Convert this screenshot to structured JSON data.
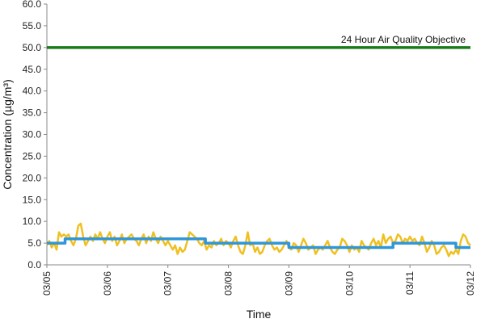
{
  "chart_data": {
    "type": "line",
    "xlabel": "Time",
    "ylabel": "Concentration (µg/m³)",
    "ylim": [
      0,
      60
    ],
    "y_ticks": [
      "0.0",
      "5.0",
      "10.0",
      "15.0",
      "20.0",
      "25.0",
      "30.0",
      "35.0",
      "40.0",
      "45.0",
      "50.0",
      "55.0",
      "60.0"
    ],
    "x_ticks": [
      "03/05",
      "03/06",
      "03/07",
      "03/08",
      "03/09",
      "03/10",
      "03/11",
      "03/12"
    ],
    "grid": false,
    "objective": {
      "label": "24 Hour Air Quality Objective",
      "value": 50,
      "color": "#1a7a1a"
    },
    "series": [
      {
        "color": "#f0c020",
        "x": [
          0,
          0.04,
          0.08,
          0.12,
          0.16,
          0.2,
          0.24,
          0.28,
          0.32,
          0.36,
          0.4,
          0.44,
          0.48,
          0.52,
          0.56,
          0.6,
          0.64,
          0.68,
          0.72,
          0.76,
          0.8,
          0.84,
          0.88,
          0.92,
          0.96,
          1.0,
          1.04,
          1.08,
          1.12,
          1.16,
          1.2,
          1.24,
          1.28,
          1.32,
          1.36,
          1.4,
          1.44,
          1.48,
          1.52,
          1.56,
          1.6,
          1.64,
          1.68,
          1.72,
          1.76,
          1.8,
          1.84,
          1.88,
          1.92,
          1.96,
          2.0,
          2.04,
          2.08,
          2.12,
          2.16,
          2.2,
          2.24,
          2.28,
          2.32,
          2.36,
          2.4,
          2.44,
          2.48,
          2.52,
          2.56,
          2.6,
          2.64,
          2.68,
          2.72,
          2.76,
          2.8,
          2.84,
          2.88,
          2.92,
          2.96,
          3.0,
          3.04,
          3.08,
          3.12,
          3.16,
          3.2,
          3.24,
          3.28,
          3.32,
          3.36,
          3.4,
          3.44,
          3.48,
          3.52,
          3.56,
          3.6,
          3.64,
          3.68,
          3.72,
          3.76,
          3.8,
          3.84,
          3.88,
          3.92,
          3.96,
          4.0,
          4.04,
          4.08,
          4.12,
          4.16,
          4.2,
          4.24,
          4.28,
          4.32,
          4.36,
          4.4,
          4.44,
          4.48,
          4.52,
          4.56,
          4.6,
          4.64,
          4.68,
          4.72,
          4.76,
          4.8,
          4.84,
          4.88,
          4.92,
          4.96,
          5.0,
          5.04,
          5.08,
          5.12,
          5.16,
          5.2,
          5.24,
          5.28,
          5.32,
          5.36,
          5.4,
          5.44,
          5.48,
          5.52,
          5.56,
          5.6,
          5.64,
          5.68,
          5.72,
          5.76,
          5.8,
          5.84,
          5.88,
          5.92,
          5.96,
          6.0,
          6.04,
          6.08,
          6.12,
          6.16,
          6.2,
          6.24,
          6.28,
          6.32,
          6.36,
          6.4,
          6.44,
          6.48,
          6.52,
          6.56,
          6.6,
          6.64,
          6.68,
          6.72,
          6.76,
          6.8,
          6.84,
          6.88,
          6.92,
          6.96,
          7.0
        ],
        "y": [
          4.5,
          5.5,
          4.0,
          5.0,
          3.5,
          7.5,
          6.5,
          7.0,
          6.5,
          7.0,
          5.5,
          4.5,
          6.0,
          9.0,
          9.5,
          6.5,
          4.5,
          5.5,
          6.5,
          5.5,
          7.0,
          6.0,
          7.5,
          6.0,
          5.0,
          6.5,
          7.5,
          5.5,
          6.5,
          4.5,
          5.5,
          7.0,
          5.0,
          6.0,
          6.5,
          7.0,
          6.0,
          5.5,
          4.5,
          6.0,
          7.0,
          5.0,
          6.5,
          5.5,
          7.5,
          6.0,
          5.0,
          6.5,
          5.5,
          4.5,
          5.5,
          4.5,
          3.5,
          4.5,
          2.5,
          4.0,
          3.0,
          3.5,
          5.5,
          7.5,
          7.0,
          6.5,
          6.0,
          5.0,
          4.5,
          5.5,
          3.5,
          4.5,
          4.0,
          5.5,
          4.5,
          5.0,
          6.0,
          4.5,
          5.5,
          5.0,
          4.0,
          5.5,
          6.5,
          4.5,
          3.0,
          2.5,
          4.5,
          7.5,
          4.5,
          5.0,
          3.0,
          4.0,
          2.5,
          3.0,
          4.5,
          5.5,
          6.0,
          4.5,
          3.5,
          4.0,
          3.0,
          3.5,
          4.5,
          5.5,
          4.0,
          3.5,
          5.0,
          4.5,
          3.0,
          4.5,
          6.0,
          5.0,
          3.5,
          4.0,
          4.5,
          2.5,
          3.5,
          4.0,
          3.5,
          4.5,
          5.5,
          4.0,
          3.0,
          2.5,
          3.5,
          4.0,
          6.0,
          5.5,
          4.5,
          3.0,
          4.5,
          3.5,
          4.0,
          3.0,
          5.5,
          4.5,
          4.0,
          3.5,
          5.0,
          6.0,
          4.5,
          5.5,
          4.0,
          7.0,
          5.0,
          6.0,
          6.5,
          5.0,
          5.5,
          7.0,
          6.5,
          5.0,
          6.0,
          5.5,
          6.5,
          5.5,
          6.0,
          5.0,
          4.5,
          6.5,
          5.0,
          3.0,
          4.0,
          5.5,
          4.5,
          2.5,
          3.0,
          4.0,
          4.5,
          3.5,
          2.0,
          3.0,
          2.5,
          3.5,
          2.5,
          5.5,
          7.0,
          6.5,
          5.0,
          4.5
        ]
      },
      {
        "color": "#2f96d8",
        "x": [
          0,
          0.3,
          0.3,
          2.62,
          2.62,
          3.7,
          3.7,
          4.0,
          4.0,
          5.72,
          5.72,
          6.76,
          6.76,
          7.0
        ],
        "y": [
          5.0,
          5.0,
          6.0,
          6.0,
          5.0,
          5.0,
          5.0,
          5.0,
          4.0,
          4.0,
          5.0,
          5.0,
          4.0,
          4.0
        ]
      }
    ]
  }
}
